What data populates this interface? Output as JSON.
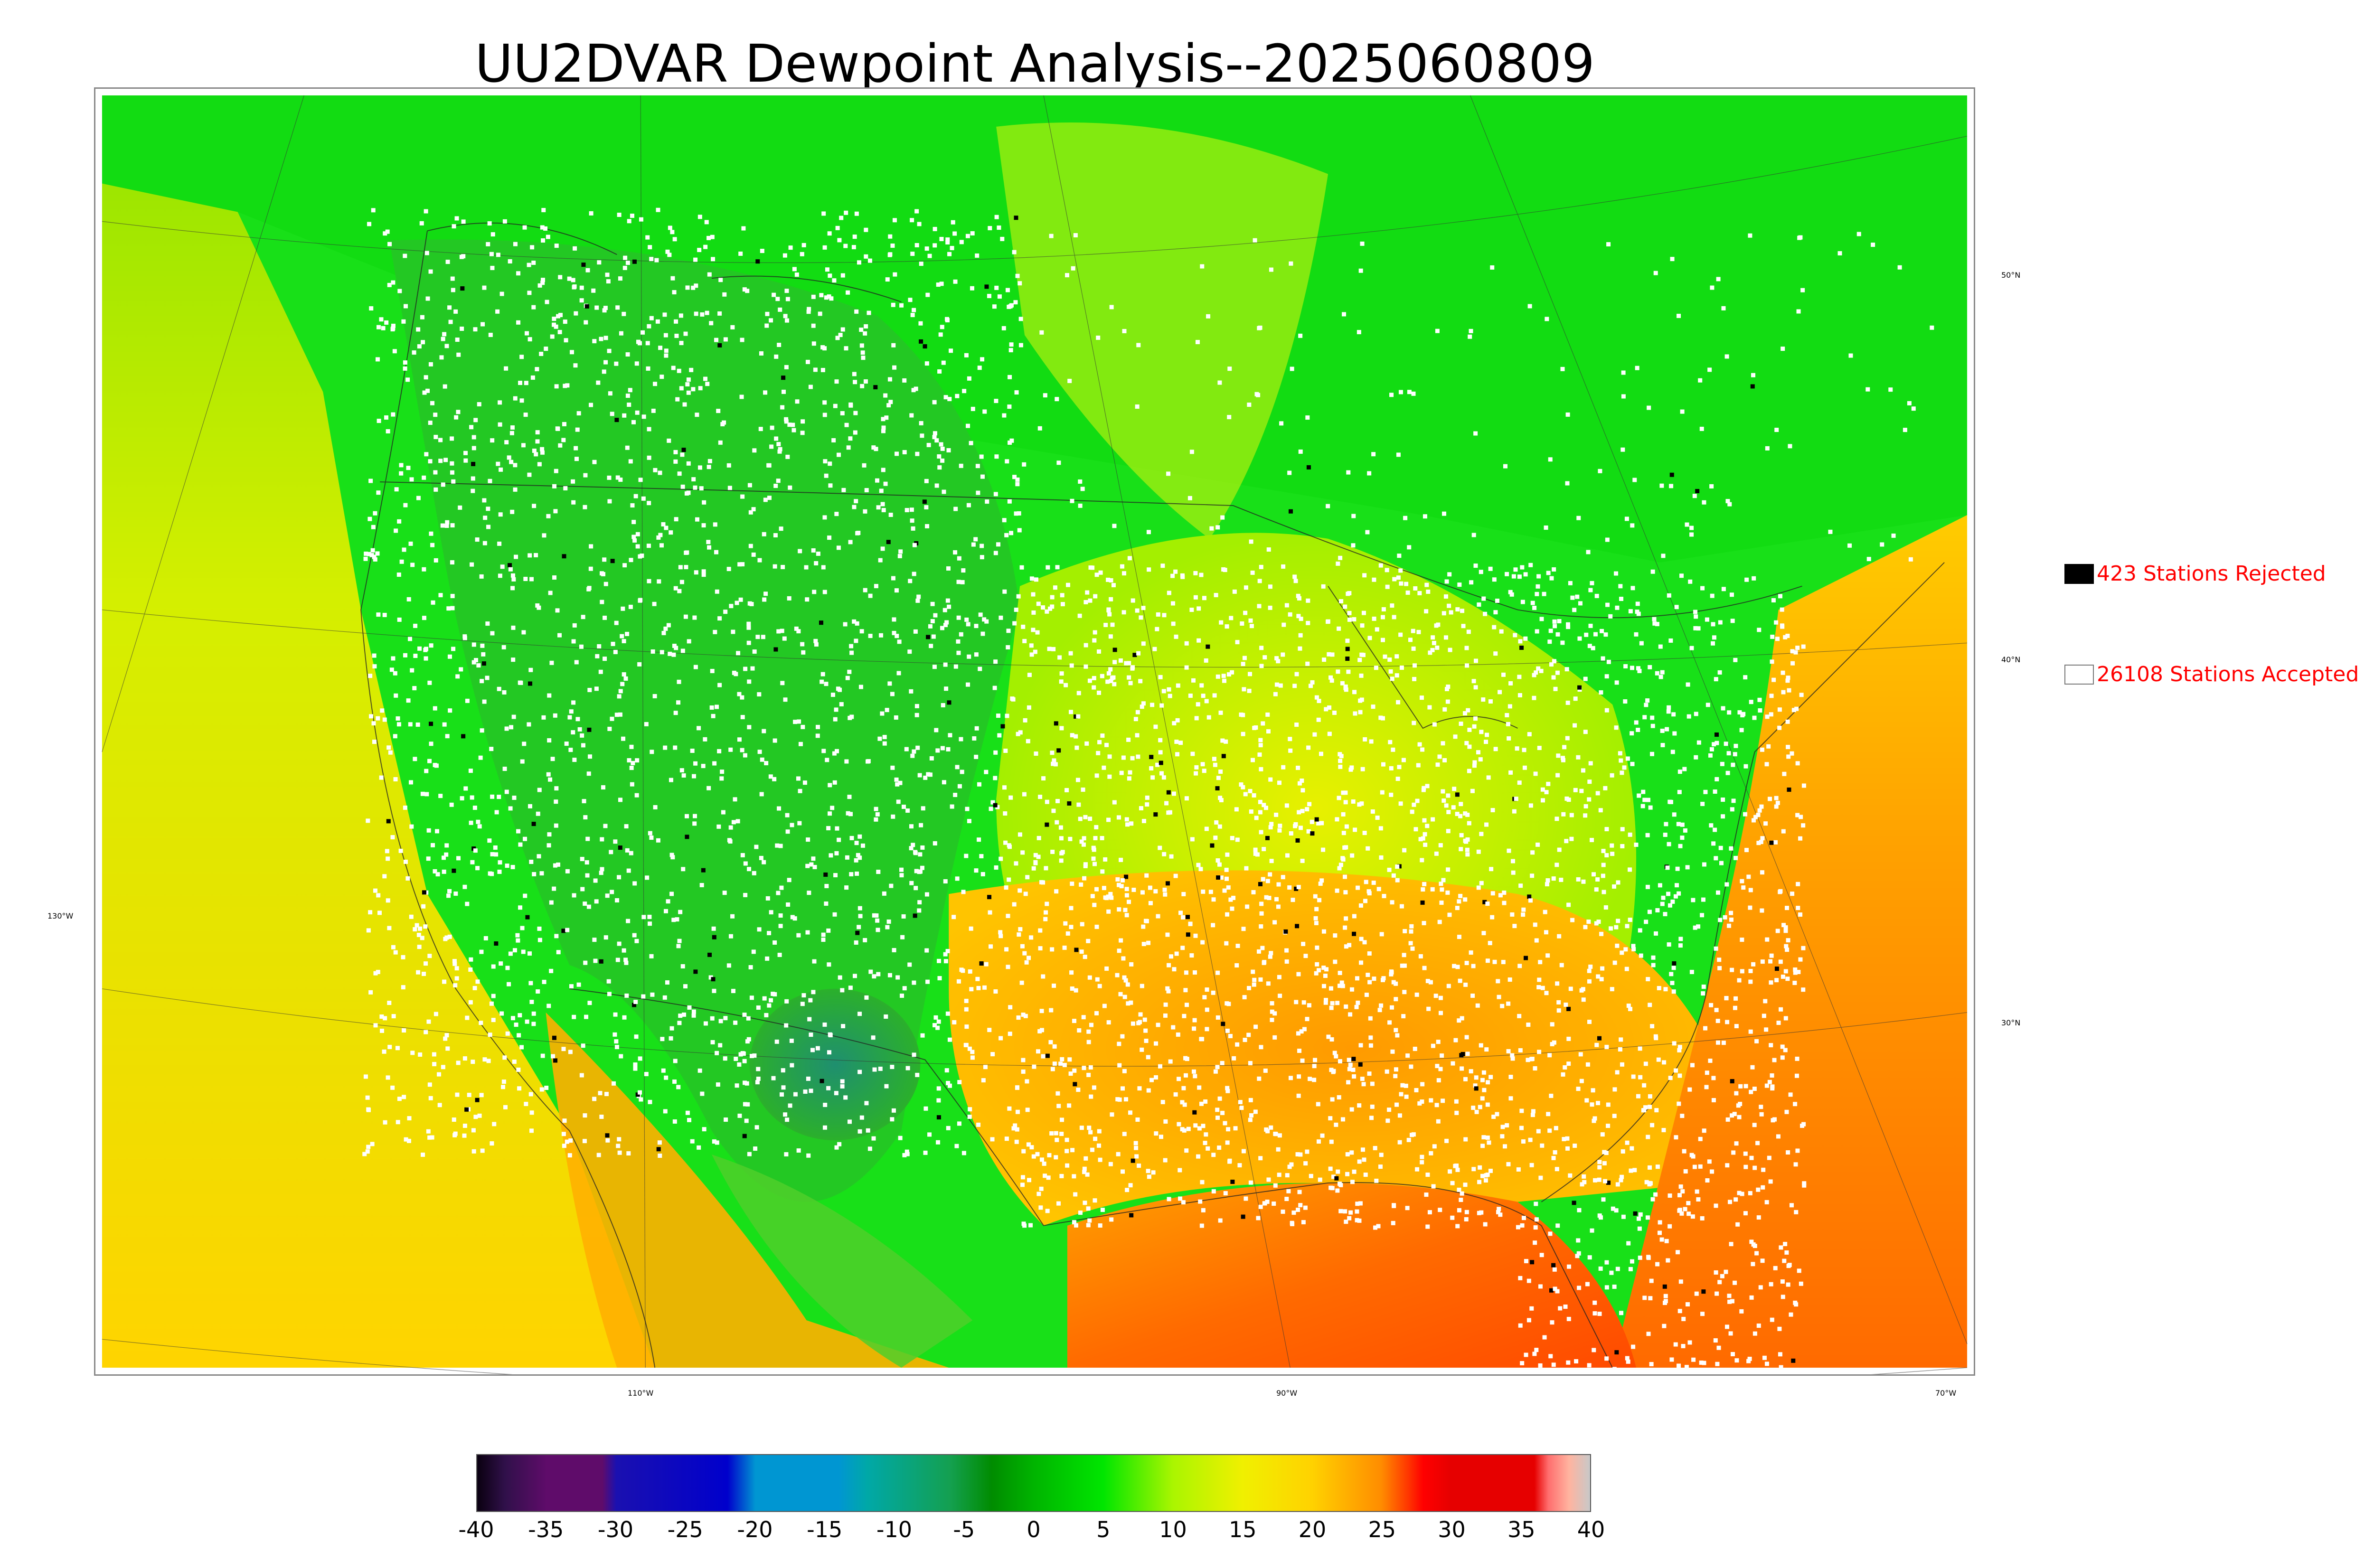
{
  "title": "UU2DVAR Dewpoint Analysis--2025060809",
  "map": {
    "lat_labels": [
      "50°N",
      "40°N",
      "30°N"
    ],
    "lon_labels": [
      "130°W",
      "110°W",
      "90°W",
      "70°W"
    ],
    "colors": {
      "green_dry": "#2fbf2f",
      "green": "#10e010",
      "lime": "#b7f000",
      "yellow": "#ffd400",
      "orange": "#ffa000",
      "red_orange": "#ff5a00",
      "teal": "#2a9d8f",
      "station_accepted": "#ffffff",
      "station_rejected": "#000000"
    }
  },
  "legend": {
    "rejected": {
      "count": 423,
      "text": "423 Stations Rejected",
      "color": "#000000"
    },
    "accepted": {
      "count": 26108,
      "text": "26108 Stations Accepted",
      "color": "#ffffff"
    }
  },
  "colorbar": {
    "min": -40,
    "max": 40,
    "ticks": [
      "-40",
      "-35",
      "-30",
      "-25",
      "-20",
      "-15",
      "-10",
      "-5",
      "0",
      "5",
      "10",
      "15",
      "20",
      "25",
      "30",
      "35",
      "40"
    ],
    "stops": [
      {
        "value": -40,
        "color": "#0a0010"
      },
      {
        "value": -38,
        "color": "#30104a"
      },
      {
        "value": -35,
        "color": "#5f0c6a"
      },
      {
        "value": -31,
        "color": "#5f0c6a"
      },
      {
        "value": -30,
        "color": "#1a10b0"
      },
      {
        "value": -22,
        "color": "#0000cc"
      },
      {
        "value": -20,
        "color": "#0096d2"
      },
      {
        "value": -14,
        "color": "#0096d2"
      },
      {
        "value": -12,
        "color": "#00a8a8"
      },
      {
        "value": -6,
        "color": "#14a050"
      },
      {
        "value": -3,
        "color": "#008c00"
      },
      {
        "value": 0,
        "color": "#00b400"
      },
      {
        "value": 5,
        "color": "#00e600"
      },
      {
        "value": 10,
        "color": "#aaf500"
      },
      {
        "value": 15,
        "color": "#f0f000"
      },
      {
        "value": 20,
        "color": "#ffd200"
      },
      {
        "value": 25,
        "color": "#ff8c00"
      },
      {
        "value": 27,
        "color": "#ff3200"
      },
      {
        "value": 28,
        "color": "#ff0000"
      },
      {
        "value": 30,
        "color": "#e60000"
      },
      {
        "value": 36,
        "color": "#e60000"
      },
      {
        "value": 37,
        "color": "#ff6e6e"
      },
      {
        "value": 38.5,
        "color": "#ffb4a0"
      },
      {
        "value": 40,
        "color": "#c8c8c8"
      }
    ]
  }
}
